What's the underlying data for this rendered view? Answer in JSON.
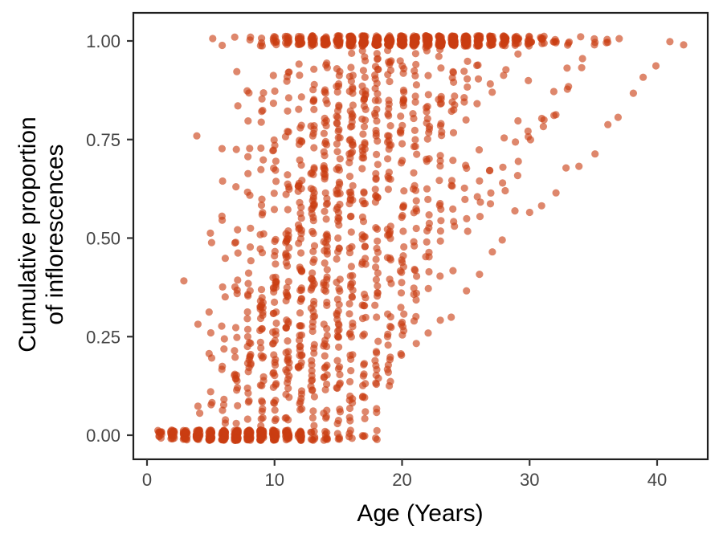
{
  "chart_data": {
    "type": "scatter",
    "title": "",
    "xlabel": "Age (Years)",
    "ylabel_lines": [
      "Cumulative proportion",
      "of inflorescences"
    ],
    "x_ticks": [
      0,
      10,
      20,
      30,
      40
    ],
    "y_ticks": [
      "0.00",
      "0.25",
      "0.50",
      "0.75",
      "1.00"
    ],
    "y_tick_values": [
      0,
      0.25,
      0.5,
      0.75,
      1
    ],
    "xlim": [
      -1.1,
      44
    ],
    "ylim": [
      -0.06,
      1.07
    ],
    "grid": "off",
    "legend": "none",
    "point": {
      "color": "#ca3e12",
      "opacity": 0.62,
      "radius": 4.6
    },
    "style": {
      "panel_border_color": "#1f1f1f",
      "tick_color": "#333333",
      "tick_label_color": "#454545",
      "axis_title_color": "#000000",
      "background": "#ffffff"
    },
    "generator": {
      "seed": 20240607,
      "x_jitter": 0.15,
      "y_jitter": 0.013,
      "weight_base": 0.15,
      "weight_power": 1.2,
      "pre_years_min": 3,
      "pre_years_span": 3,
      "late_onset_threshold": 14,
      "pre_years_late": 1
    },
    "individuals": [
      [
        4,
        5,
        12
      ],
      [
        5,
        6,
        14
      ],
      [
        5,
        7,
        15
      ],
      [
        5,
        5,
        13
      ],
      [
        6,
        6,
        16
      ],
      [
        6,
        7,
        17
      ],
      [
        6,
        5,
        14
      ],
      [
        6,
        8,
        18
      ],
      [
        5,
        8,
        16
      ],
      [
        6,
        6,
        15
      ],
      [
        4,
        6,
        13
      ],
      [
        6,
        9,
        19
      ],
      [
        5,
        6,
        12
      ],
      [
        6,
        7,
        16
      ],
      [
        5,
        9,
        17
      ],
      [
        6,
        10,
        20
      ],
      [
        4,
        7,
        14
      ],
      [
        3,
        3,
        10
      ],
      [
        7,
        6,
        16
      ],
      [
        7,
        7,
        18
      ],
      [
        7,
        8,
        19
      ],
      [
        7,
        5,
        15
      ],
      [
        7,
        9,
        20
      ],
      [
        7,
        6,
        17
      ],
      [
        7,
        10,
        21
      ],
      [
        8,
        6,
        17
      ],
      [
        8,
        7,
        19
      ],
      [
        8,
        8,
        20
      ],
      [
        8,
        5,
        16
      ],
      [
        8,
        9,
        21
      ],
      [
        8,
        7,
        18
      ],
      [
        8,
        10,
        22
      ],
      [
        8,
        6,
        18
      ],
      [
        9,
        7,
        20
      ],
      [
        9,
        8,
        21
      ],
      [
        9,
        6,
        18
      ],
      [
        9,
        9,
        22
      ],
      [
        9,
        10,
        23
      ],
      [
        9,
        5,
        17
      ],
      [
        9,
        7,
        19
      ],
      [
        9,
        11,
        24
      ],
      [
        7,
        11,
        22
      ],
      [
        8,
        11,
        23
      ],
      [
        9,
        12,
        25
      ],
      [
        8,
        12,
        24
      ],
      [
        7,
        12,
        23
      ],
      [
        9,
        6,
        19
      ],
      [
        8,
        8,
        19
      ],
      [
        10,
        7,
        20
      ],
      [
        10,
        8,
        22
      ],
      [
        10,
        9,
        23
      ],
      [
        10,
        6,
        19
      ],
      [
        10,
        10,
        24
      ],
      [
        10,
        11,
        25
      ],
      [
        10,
        8,
        21
      ],
      [
        10,
        12,
        26
      ],
      [
        11,
        7,
        21
      ],
      [
        11,
        8,
        23
      ],
      [
        11,
        9,
        24
      ],
      [
        11,
        10,
        25
      ],
      [
        11,
        6,
        20
      ],
      [
        11,
        11,
        26
      ],
      [
        11,
        12,
        27
      ],
      [
        11,
        8,
        22
      ],
      [
        12,
        7,
        22
      ],
      [
        12,
        8,
        24
      ],
      [
        12,
        9,
        25
      ],
      [
        12,
        10,
        26
      ],
      [
        12,
        6,
        21
      ],
      [
        12,
        11,
        27
      ],
      [
        12,
        12,
        28
      ],
      [
        12,
        8,
        23
      ],
      [
        10,
        9,
        22
      ],
      [
        11,
        9,
        23
      ],
      [
        12,
        9,
        26
      ],
      [
        10,
        11,
        26
      ],
      [
        13,
        8,
        24
      ],
      [
        13,
        9,
        26
      ],
      [
        13,
        10,
        27
      ],
      [
        13,
        7,
        23
      ],
      [
        13,
        11,
        28
      ],
      [
        14,
        8,
        25
      ],
      [
        14,
        9,
        27
      ],
      [
        14,
        10,
        28
      ],
      [
        14,
        7,
        24
      ],
      [
        14,
        11,
        29
      ],
      [
        15,
        8,
        26
      ],
      [
        15,
        9,
        28
      ],
      [
        15,
        10,
        29
      ],
      [
        15,
        7,
        25
      ],
      [
        15,
        11,
        30
      ],
      [
        13,
        12,
        29
      ],
      [
        14,
        12,
        30
      ],
      [
        15,
        12,
        31
      ],
      [
        13,
        9,
        25
      ],
      [
        14,
        8,
        26
      ],
      [
        16,
        8,
        27
      ],
      [
        16,
        9,
        28
      ],
      [
        16,
        10,
        30
      ],
      [
        17,
        8,
        28
      ],
      [
        17,
        9,
        30
      ],
      [
        17,
        10,
        31
      ],
      [
        18,
        8,
        29
      ],
      [
        18,
        9,
        31
      ],
      [
        18,
        10,
        32
      ],
      [
        19,
        8,
        30
      ],
      [
        19,
        9,
        32
      ],
      [
        19,
        11,
        33
      ],
      [
        15,
        27,
        42
      ],
      [
        14,
        22,
        37
      ],
      [
        16,
        20,
        36
      ],
      [
        13,
        19,
        33
      ],
      [
        15,
        17,
        33
      ],
      [
        12,
        16,
        29
      ],
      [
        17,
        18,
        36
      ],
      [
        9,
        8,
        20
      ],
      [
        10,
        7,
        21
      ],
      [
        11,
        7,
        20
      ],
      [
        12,
        7,
        21
      ],
      [
        8,
        9,
        20
      ],
      [
        9,
        9,
        21
      ],
      [
        10,
        10,
        23
      ],
      [
        11,
        10,
        24
      ],
      [
        12,
        10,
        25
      ],
      [
        13,
        10,
        26
      ]
    ]
  }
}
